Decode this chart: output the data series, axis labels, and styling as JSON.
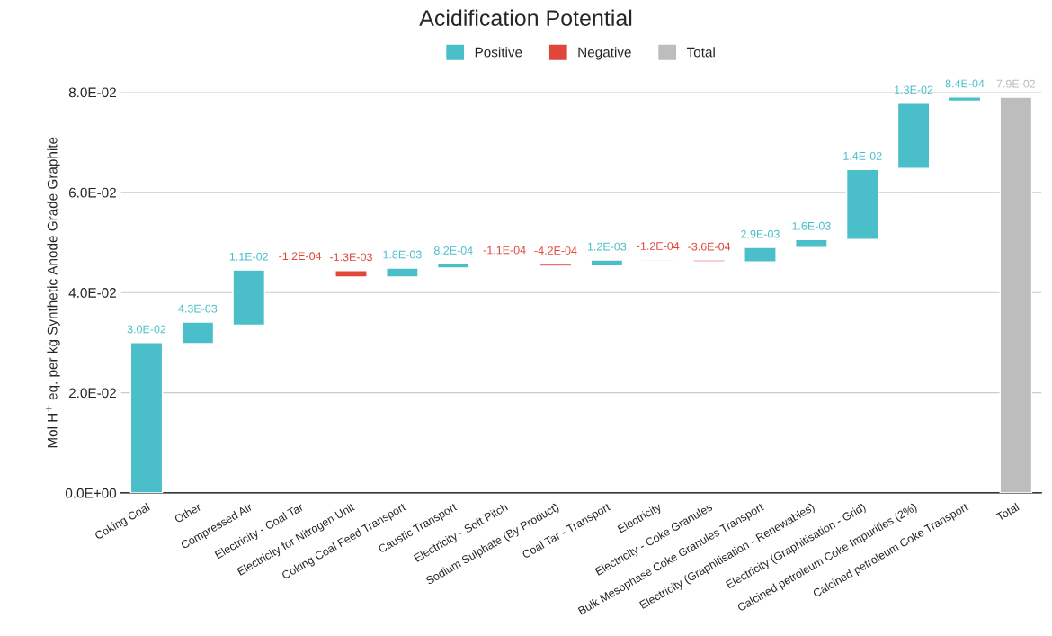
{
  "chart_data": {
    "type": "bar",
    "title": "Acidification Potential",
    "ylabel": "Mol H$^{+}$ eq. per kg Synthetic Anode Grade Graphite",
    "categories": [
      "Coking Coal",
      "Other",
      "Compressed Air",
      "Electricity - Coal Tar",
      "Electricity for Nitrogen Unit",
      "Coking Coal Feed Transport",
      "Caustic Transport",
      "Electricity - Soft Pitch",
      "Sodium Sulphate (By Product)",
      "Coal Tar - Transport",
      "Electricity",
      "Electricity - Coke Granules",
      "Bulk Mesophase Coke Granules Transport",
      "Electricity (Graphitisation - Renewables)",
      "Electricity (Graphitisation - Grid)",
      "Calcined petroleum Coke Impurities (2%)",
      "Calcined petroleum Coke Transport",
      "Total"
    ],
    "series": [
      {
        "name": "Positive",
        "color": "#4bbfc9",
        "values": [
          0.03,
          0.0043,
          0.011,
          null,
          null,
          0.0018,
          0.00082,
          null,
          null,
          0.0012,
          null,
          null,
          0.0029,
          0.0016,
          0.014,
          0.013,
          0.00084,
          null
        ],
        "base": [
          0,
          0.0298,
          0.0335,
          null,
          null,
          0.0431,
          0.0449,
          null,
          null,
          0.0453,
          null,
          null,
          0.0461,
          0.049,
          0.0506,
          0.0648,
          0.0782,
          null
        ],
        "value_labels": [
          "3.0E-02",
          "4.3E-03",
          "1.1E-02",
          null,
          null,
          "1.8E-03",
          "8.2E-04",
          null,
          null,
          "1.2E-03",
          null,
          null,
          "2.9E-03",
          "1.6E-03",
          "1.4E-02",
          "1.3E-02",
          "8.4E-04",
          null
        ]
      },
      {
        "name": "Negative",
        "color": "#e0463a",
        "values": [
          null,
          null,
          null,
          -0.00012,
          -0.0013,
          null,
          null,
          -0.00011,
          -0.00042,
          null,
          -0.00012,
          -0.00036,
          null,
          null,
          null,
          null,
          null,
          null
        ],
        "base": [
          null,
          null,
          null,
          0.0446,
          0.0444,
          null,
          null,
          0.0458,
          0.0457,
          null,
          0.0466,
          0.0465,
          null,
          null,
          null,
          null,
          null,
          null
        ],
        "value_labels": [
          null,
          null,
          null,
          "-1.2E-04",
          "-1.3E-03",
          null,
          null,
          "-1.1E-04",
          "-4.2E-04",
          null,
          "-1.2E-04",
          "-3.6E-04",
          null,
          null,
          null,
          null,
          null,
          null
        ]
      },
      {
        "name": "Total",
        "color": "#bdbdbd",
        "values": [
          null,
          null,
          null,
          null,
          null,
          null,
          null,
          null,
          null,
          null,
          null,
          null,
          null,
          null,
          null,
          null,
          null,
          0.079
        ],
        "base": [
          null,
          null,
          null,
          null,
          null,
          null,
          null,
          null,
          null,
          null,
          null,
          null,
          null,
          null,
          null,
          null,
          null,
          0
        ],
        "value_labels": [
          null,
          null,
          null,
          null,
          null,
          null,
          null,
          null,
          null,
          null,
          null,
          null,
          null,
          null,
          null,
          null,
          null,
          "7.9E-02"
        ]
      }
    ],
    "ylim": [
      0,
      0.08
    ],
    "yticks": [
      {
        "value": 0,
        "label": "0.0E+00"
      },
      {
        "value": 0.02,
        "label": "2.0E-02"
      },
      {
        "value": 0.04,
        "label": "4.0E-02"
      },
      {
        "value": 0.06,
        "label": "6.0E-02"
      },
      {
        "value": 0.08,
        "label": "8.0E-02"
      }
    ],
    "grid": "y",
    "legend": "top"
  }
}
